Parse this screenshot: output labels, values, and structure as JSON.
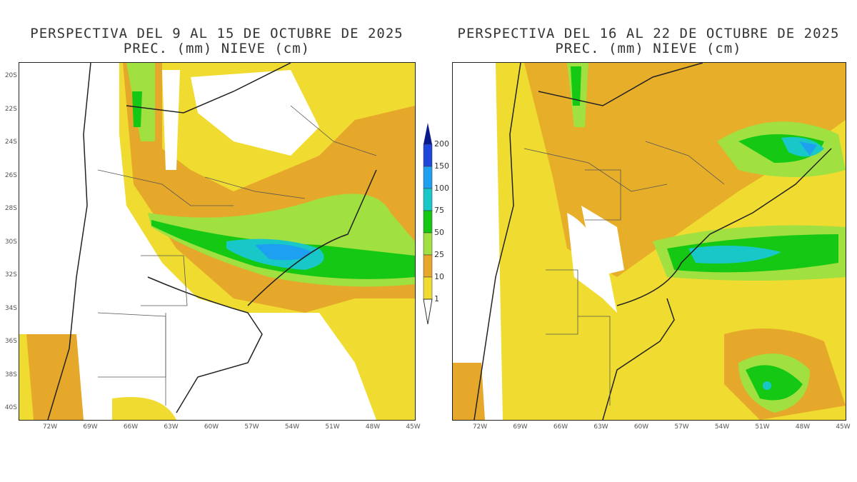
{
  "panels": [
    {
      "title1": "PERSPECTIVA DEL 9 AL 15 DE OCTUBRE DE 2025",
      "title2": "PREC. (mm) NIEVE (cm)"
    },
    {
      "title1": "PERSPECTIVA DEL 16 AL 22 DE OCTUBRE DE 2025",
      "title2": "PREC. (mm) NIEVE (cm)"
    }
  ],
  "lat_labels": [
    "20S",
    "22S",
    "24S",
    "26S",
    "28S",
    "30S",
    "32S",
    "34S",
    "36S",
    "38S",
    "40S"
  ],
  "lon_labels": [
    "72W",
    "69W",
    "66W",
    "63W",
    "60W",
    "57W",
    "54W",
    "51W",
    "48W",
    "45W"
  ],
  "colorbar": {
    "levels": [
      "200",
      "150",
      "100",
      "75",
      "50",
      "25",
      "10",
      "1"
    ],
    "colors": [
      "#0a1a8c",
      "#1e46dc",
      "#1ea0f0",
      "#18c8c8",
      "#14c814",
      "#a0e040",
      "#e6a82a",
      "#f0dc30"
    ]
  }
}
